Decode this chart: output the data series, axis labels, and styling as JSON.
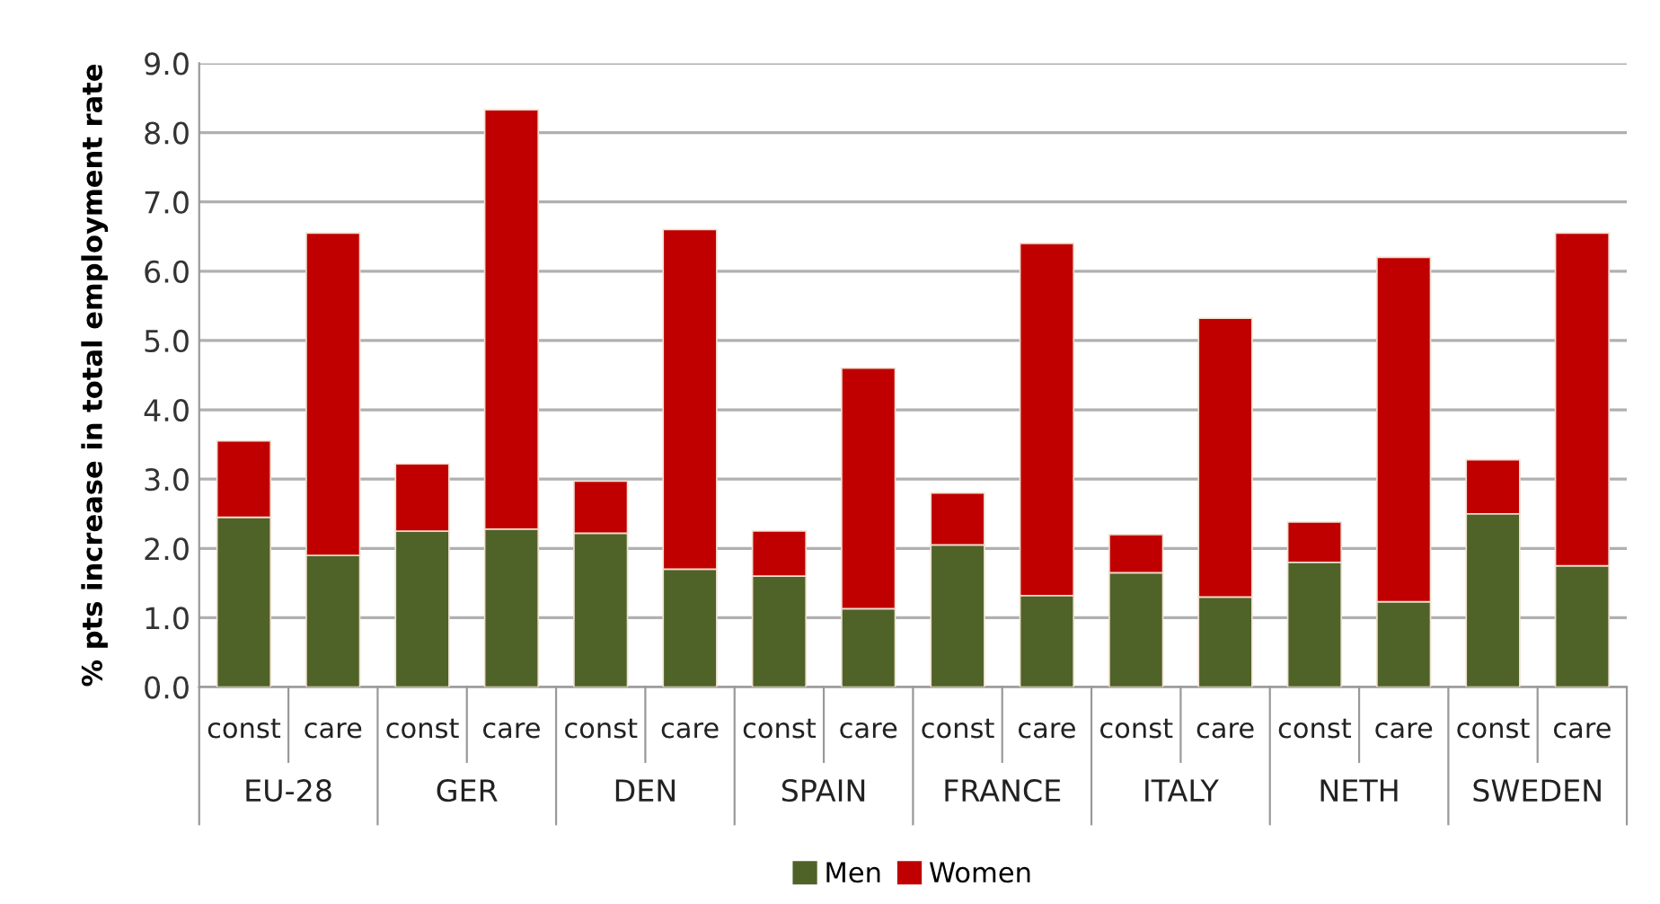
{
  "chart_data": {
    "type": "bar",
    "stacked": true,
    "ylabel": "% pts increase in total employment rate",
    "categories": [
      "const",
      "care",
      "const",
      "care",
      "const",
      "care",
      "const",
      "care",
      "const",
      "care",
      "const",
      "care",
      "const",
      "care",
      "const",
      "care"
    ],
    "annotations": [
      "EU-28",
      "GER",
      "DEN",
      "SPAIN",
      "FRANCE",
      "ITALY",
      "NETH",
      "SWEDEN"
    ],
    "series": [
      {
        "name": "Men",
        "color": "#4f6228",
        "values": [
          2.45,
          1.9,
          2.25,
          2.28,
          2.22,
          1.7,
          1.6,
          1.13,
          2.05,
          1.32,
          1.65,
          1.3,
          1.8,
          1.23,
          2.5,
          1.75
        ]
      },
      {
        "name": "Women",
        "color": "#c00000",
        "values": [
          1.1,
          4.65,
          0.97,
          6.05,
          0.75,
          4.9,
          0.65,
          3.47,
          0.75,
          5.08,
          0.55,
          4.02,
          0.58,
          4.97,
          0.78,
          4.8
        ]
      }
    ],
    "ylim": [
      0,
      9
    ],
    "yticks": [
      {
        "value": 0,
        "label": "0.0"
      },
      {
        "value": 1,
        "label": "1.0"
      },
      {
        "value": 2,
        "label": "2.0"
      },
      {
        "value": 3,
        "label": "3.0"
      },
      {
        "value": 4,
        "label": "4.0"
      },
      {
        "value": 5,
        "label": "5.0"
      },
      {
        "value": 6,
        "label": "6.0"
      },
      {
        "value": 7,
        "label": "7.0"
      },
      {
        "value": 8,
        "label": "8.0"
      },
      {
        "value": 9,
        "label": "9.0"
      }
    ],
    "grid": "y",
    "legend": "bottom"
  }
}
